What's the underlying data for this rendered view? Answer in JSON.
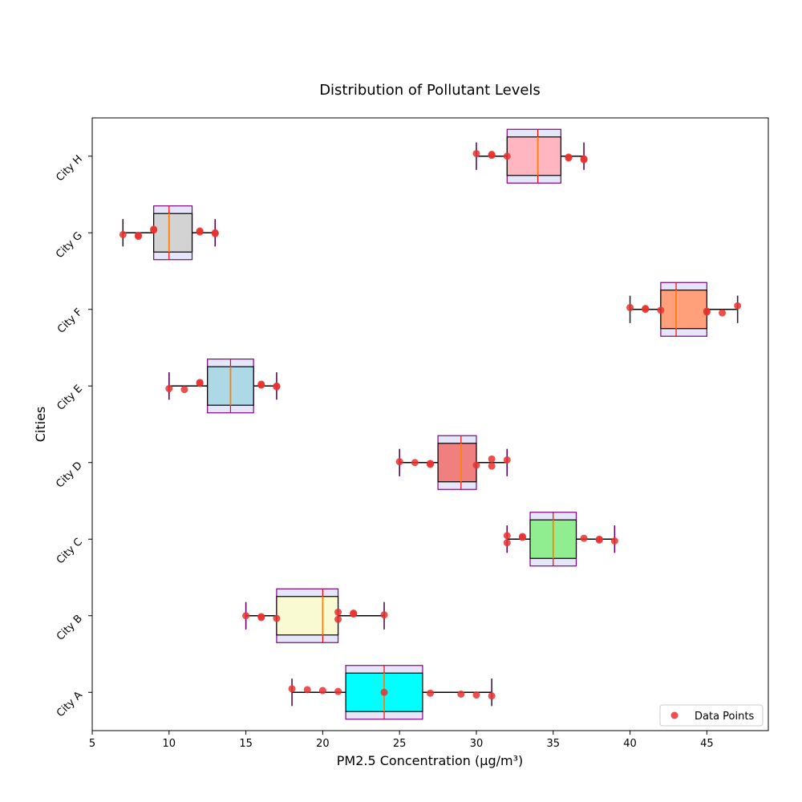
{
  "chart_data": {
    "type": "box",
    "title": "Distribution of Pollutant Levels",
    "xlabel": "PM2.5 Concentration (µg/m³)",
    "ylabel": "Cities",
    "xlim": [
      5,
      49
    ],
    "xticks": [
      5,
      10,
      15,
      20,
      25,
      30,
      35,
      40,
      45
    ],
    "legend": {
      "label": "Data Points",
      "position": "bottom-right",
      "marker_color": "#e8312f"
    },
    "categories": [
      "City A",
      "City B",
      "City C",
      "City D",
      "City E",
      "City F",
      "City G",
      "City H"
    ],
    "series": [
      {
        "category": "City A",
        "whisker_low": 18,
        "q1": 21.5,
        "median": 24,
        "q3": 26.5,
        "whisker_high": 31,
        "color": "#00ffff",
        "points": [
          18,
          19,
          20,
          21,
          24,
          27,
          29,
          30,
          31
        ]
      },
      {
        "category": "City B",
        "whisker_low": 15,
        "q1": 17,
        "median": 20,
        "q3": 21,
        "whisker_high": 24,
        "color": "#fafad2",
        "points": [
          15,
          16,
          16,
          17,
          21,
          21,
          22,
          22,
          24
        ]
      },
      {
        "category": "City C",
        "whisker_low": 32,
        "q1": 33.5,
        "median": 35,
        "q3": 36.5,
        "whisker_high": 39,
        "color": "#90ee90",
        "points": [
          32,
          32,
          33,
          33,
          37,
          38,
          38,
          39
        ]
      },
      {
        "category": "City D",
        "whisker_low": 25,
        "q1": 27.5,
        "median": 29,
        "q3": 30,
        "whisker_high": 32,
        "color": "#f08080",
        "points": [
          25,
          26,
          27,
          27,
          30,
          31,
          31,
          32
        ]
      },
      {
        "category": "City E",
        "whisker_low": 10,
        "q1": 12.5,
        "median": 14,
        "q3": 15.5,
        "whisker_high": 17,
        "color": "#add8e6",
        "points": [
          10,
          11,
          12,
          12,
          16,
          16,
          17,
          17
        ]
      },
      {
        "category": "City F",
        "whisker_low": 40,
        "q1": 42,
        "median": 43,
        "q3": 45,
        "whisker_high": 47,
        "color": "#ffa07a",
        "points": [
          40,
          41,
          41,
          42,
          45,
          45,
          46,
          47
        ]
      },
      {
        "category": "City G",
        "whisker_low": 7,
        "q1": 9,
        "median": 10,
        "q3": 11.5,
        "whisker_high": 13,
        "color": "#d3d3d3",
        "points": [
          7,
          8,
          8,
          9,
          9,
          12,
          12,
          13,
          13
        ]
      },
      {
        "category": "City H",
        "whisker_low": 30,
        "q1": 32,
        "median": 34,
        "q3": 35.5,
        "whisker_high": 37,
        "color": "#ffb6c1",
        "points": [
          30,
          31,
          31,
          32,
          36,
          36,
          37,
          37
        ]
      }
    ]
  }
}
